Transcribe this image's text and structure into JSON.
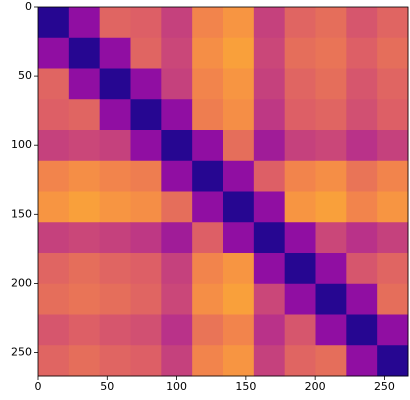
{
  "chart_data": {
    "type": "heatmap",
    "colormap": "plasma",
    "clim": [
      0,
      1
    ],
    "xlim": [
      0,
      267
    ],
    "ylim": [
      267,
      0
    ],
    "xticks": [
      0,
      50,
      100,
      150,
      200,
      250
    ],
    "yticks": [
      0,
      50,
      100,
      150,
      200,
      250
    ],
    "values": [
      [
        0.05,
        0.3,
        0.6,
        0.58,
        0.48,
        0.7,
        0.75,
        0.48,
        0.6,
        0.63,
        0.55,
        0.6
      ],
      [
        0.3,
        0.05,
        0.3,
        0.6,
        0.5,
        0.73,
        0.78,
        0.5,
        0.63,
        0.65,
        0.58,
        0.63
      ],
      [
        0.6,
        0.3,
        0.05,
        0.3,
        0.48,
        0.7,
        0.75,
        0.48,
        0.6,
        0.63,
        0.55,
        0.6
      ],
      [
        0.58,
        0.6,
        0.3,
        0.05,
        0.3,
        0.68,
        0.73,
        0.45,
        0.58,
        0.6,
        0.53,
        0.58
      ],
      [
        0.48,
        0.5,
        0.48,
        0.3,
        0.05,
        0.3,
        0.63,
        0.35,
        0.48,
        0.5,
        0.43,
        0.48
      ],
      [
        0.7,
        0.73,
        0.7,
        0.68,
        0.3,
        0.05,
        0.3,
        0.58,
        0.7,
        0.73,
        0.65,
        0.7
      ],
      [
        0.75,
        0.78,
        0.75,
        0.73,
        0.63,
        0.3,
        0.05,
        0.3,
        0.75,
        0.78,
        0.7,
        0.75
      ],
      [
        0.48,
        0.5,
        0.48,
        0.45,
        0.35,
        0.58,
        0.3,
        0.05,
        0.3,
        0.5,
        0.43,
        0.48
      ],
      [
        0.6,
        0.63,
        0.6,
        0.58,
        0.48,
        0.7,
        0.75,
        0.3,
        0.05,
        0.3,
        0.55,
        0.6
      ],
      [
        0.63,
        0.65,
        0.63,
        0.6,
        0.5,
        0.73,
        0.78,
        0.5,
        0.3,
        0.05,
        0.3,
        0.63
      ],
      [
        0.55,
        0.58,
        0.55,
        0.53,
        0.43,
        0.65,
        0.7,
        0.43,
        0.55,
        0.3,
        0.05,
        0.3
      ],
      [
        0.6,
        0.63,
        0.6,
        0.58,
        0.48,
        0.7,
        0.75,
        0.48,
        0.6,
        0.63,
        0.3,
        0.05
      ]
    ]
  }
}
